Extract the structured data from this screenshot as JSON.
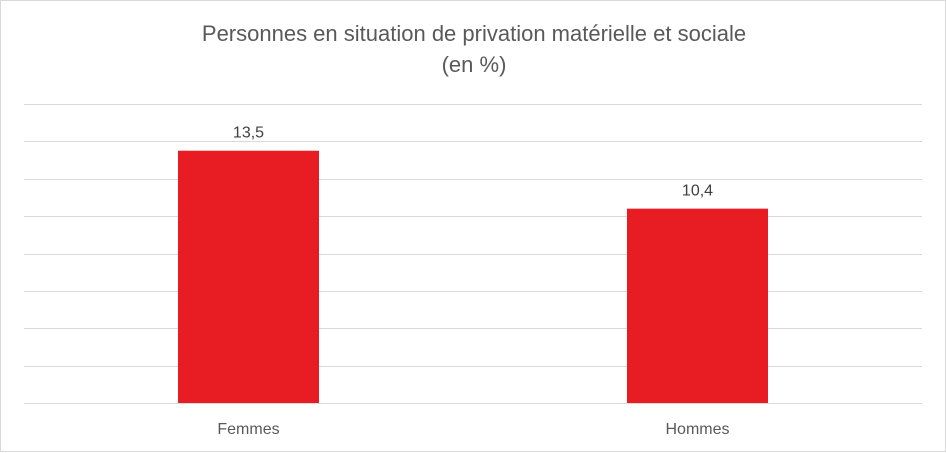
{
  "chart_data": {
    "type": "bar",
    "title": "Personnes en situation de privation matérielle et sociale",
    "subtitle": "(en %)",
    "categories": [
      "Femmes",
      "Hommes"
    ],
    "values": [
      13.5,
      10.4
    ],
    "value_labels": [
      "13,5",
      "10,4"
    ],
    "ylim": [
      0,
      16
    ],
    "y_gridline_step": 2,
    "y_axis_visible": false,
    "grid": true,
    "legend": "none",
    "bar_color": "#e81c23",
    "grid_color": "#d9d9d9"
  }
}
